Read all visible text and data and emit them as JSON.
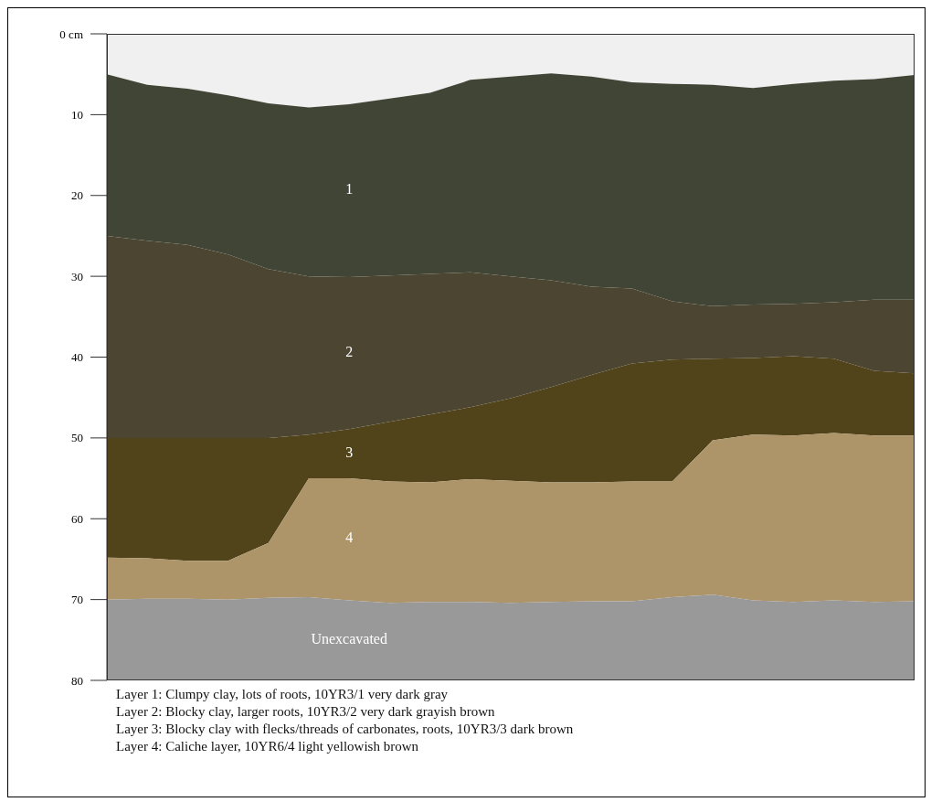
{
  "chart_data": {
    "type": "area",
    "stacked": true,
    "categories": [
      null,
      null,
      null,
      null,
      null,
      null,
      null,
      null,
      null,
      null,
      null,
      null,
      null,
      null,
      null,
      null,
      null,
      null,
      null,
      null,
      null
    ],
    "series": [
      {
        "color": "#f0f0f0",
        "values": [
          5.0,
          6.3,
          6.8,
          7.6,
          8.6,
          9.1,
          8.7,
          8.0,
          7.3,
          5.7,
          5.3,
          4.9,
          5.3,
          6.0,
          6.2,
          6.3,
          6.7,
          6.2,
          5.8,
          5.6,
          5.1
        ]
      },
      {
        "name": "1",
        "color": "#414536",
        "values": [
          20.0,
          19.3,
          19.3,
          19.7,
          20.5,
          20.9,
          21.4,
          21.9,
          22.4,
          23.8,
          24.7,
          25.6,
          26.0,
          25.5,
          26.9,
          27.4,
          26.8,
          27.2,
          27.4,
          27.3,
          27.8
        ]
      },
      {
        "name": "2",
        "color": "#4b4531",
        "values": [
          25.0,
          24.4,
          23.9,
          22.7,
          20.9,
          19.6,
          18.8,
          18.1,
          17.4,
          16.7,
          15.1,
          13.2,
          10.9,
          9.3,
          7.2,
          6.5,
          6.6,
          6.5,
          7.0,
          8.8,
          9.1
        ]
      },
      {
        "name": "3",
        "color": "#51431a",
        "values": [
          14.8,
          14.9,
          15.2,
          15.2,
          13.0,
          5.4,
          6.1,
          7.4,
          8.4,
          8.9,
          10.2,
          11.8,
          13.3,
          14.6,
          15.1,
          10.1,
          9.5,
          9.8,
          9.2,
          8.0,
          7.7
        ]
      },
      {
        "name": "4",
        "color": "#ad9469",
        "values": [
          5.2,
          5.0,
          4.7,
          4.8,
          6.8,
          14.7,
          15.1,
          15.0,
          14.8,
          15.2,
          15.1,
          14.8,
          14.7,
          14.8,
          14.3,
          19.1,
          20.5,
          20.6,
          20.7,
          20.6,
          20.5
        ]
      },
      {
        "name": "Unexcavated",
        "color": "#999999",
        "values": [
          10.0,
          10.1,
          10.1,
          10.0,
          10.2,
          10.3,
          9.9,
          9.6,
          9.7,
          9.7,
          9.6,
          9.7,
          9.8,
          9.8,
          10.3,
          10.6,
          9.9,
          9.7,
          9.9,
          9.7,
          9.8
        ]
      }
    ],
    "ylim": [
      80,
      0
    ],
    "yticks": [
      {
        "value": 0,
        "label": "0 cm"
      },
      10,
      20,
      30,
      40,
      50,
      60,
      70,
      80
    ],
    "tick_labels": "y",
    "grid": false,
    "legend": false,
    "annotations": [
      "Layer 1: Clumpy clay, lots of roots, 10YR3/1 very dark gray",
      "Layer 2: Blocky clay, larger roots, 10YR3/2 very dark grayish brown",
      "Layer 3: Blocky clay with flecks/threads of carbonates, roots, 10YR3/3 dark brown",
      "Layer 4: Caliche layer, 10YR6/4 light yellowish brown"
    ]
  }
}
